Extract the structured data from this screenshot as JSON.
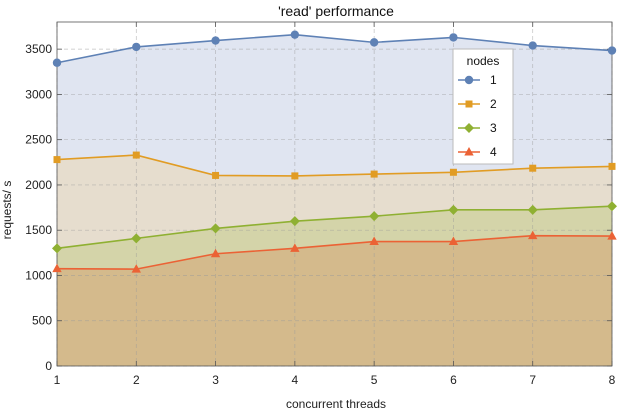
{
  "chart_data": {
    "type": "area",
    "title": "'read' performance",
    "xlabel": "concurrent threads",
    "ylabel": "requests/ s",
    "x": [
      1,
      2,
      3,
      4,
      5,
      6,
      7,
      8
    ],
    "xlim": [
      1,
      8
    ],
    "ylim": [
      0,
      3800
    ],
    "yticks": [
      0,
      500,
      1000,
      1500,
      2000,
      2500,
      3000,
      3500
    ],
    "xticks": [
      1,
      2,
      3,
      4,
      5,
      6,
      7,
      8
    ],
    "grid": true,
    "legend": {
      "title": "nodes",
      "placement": "top-right"
    },
    "series": [
      {
        "name": "1",
        "values": [
          3350,
          3525,
          3595,
          3660,
          3575,
          3630,
          3540,
          3485
        ],
        "color": "#5e81b5",
        "fill": "#dde3f0",
        "marker": "circle"
      },
      {
        "name": "2",
        "values": [
          2280,
          2330,
          2105,
          2100,
          2120,
          2140,
          2185,
          2205
        ],
        "color": "#e19c24",
        "fill": "#e6dccb",
        "marker": "square"
      },
      {
        "name": "3",
        "values": [
          1300,
          1410,
          1520,
          1600,
          1655,
          1725,
          1725,
          1765
        ],
        "color": "#8fb032",
        "fill": "#d3d3a6",
        "marker": "diamond"
      },
      {
        "name": "4",
        "values": [
          1075,
          1070,
          1240,
          1300,
          1375,
          1375,
          1440,
          1435
        ],
        "color": "#eb6235",
        "fill": "#d4b78a",
        "marker": "triangle"
      }
    ]
  }
}
